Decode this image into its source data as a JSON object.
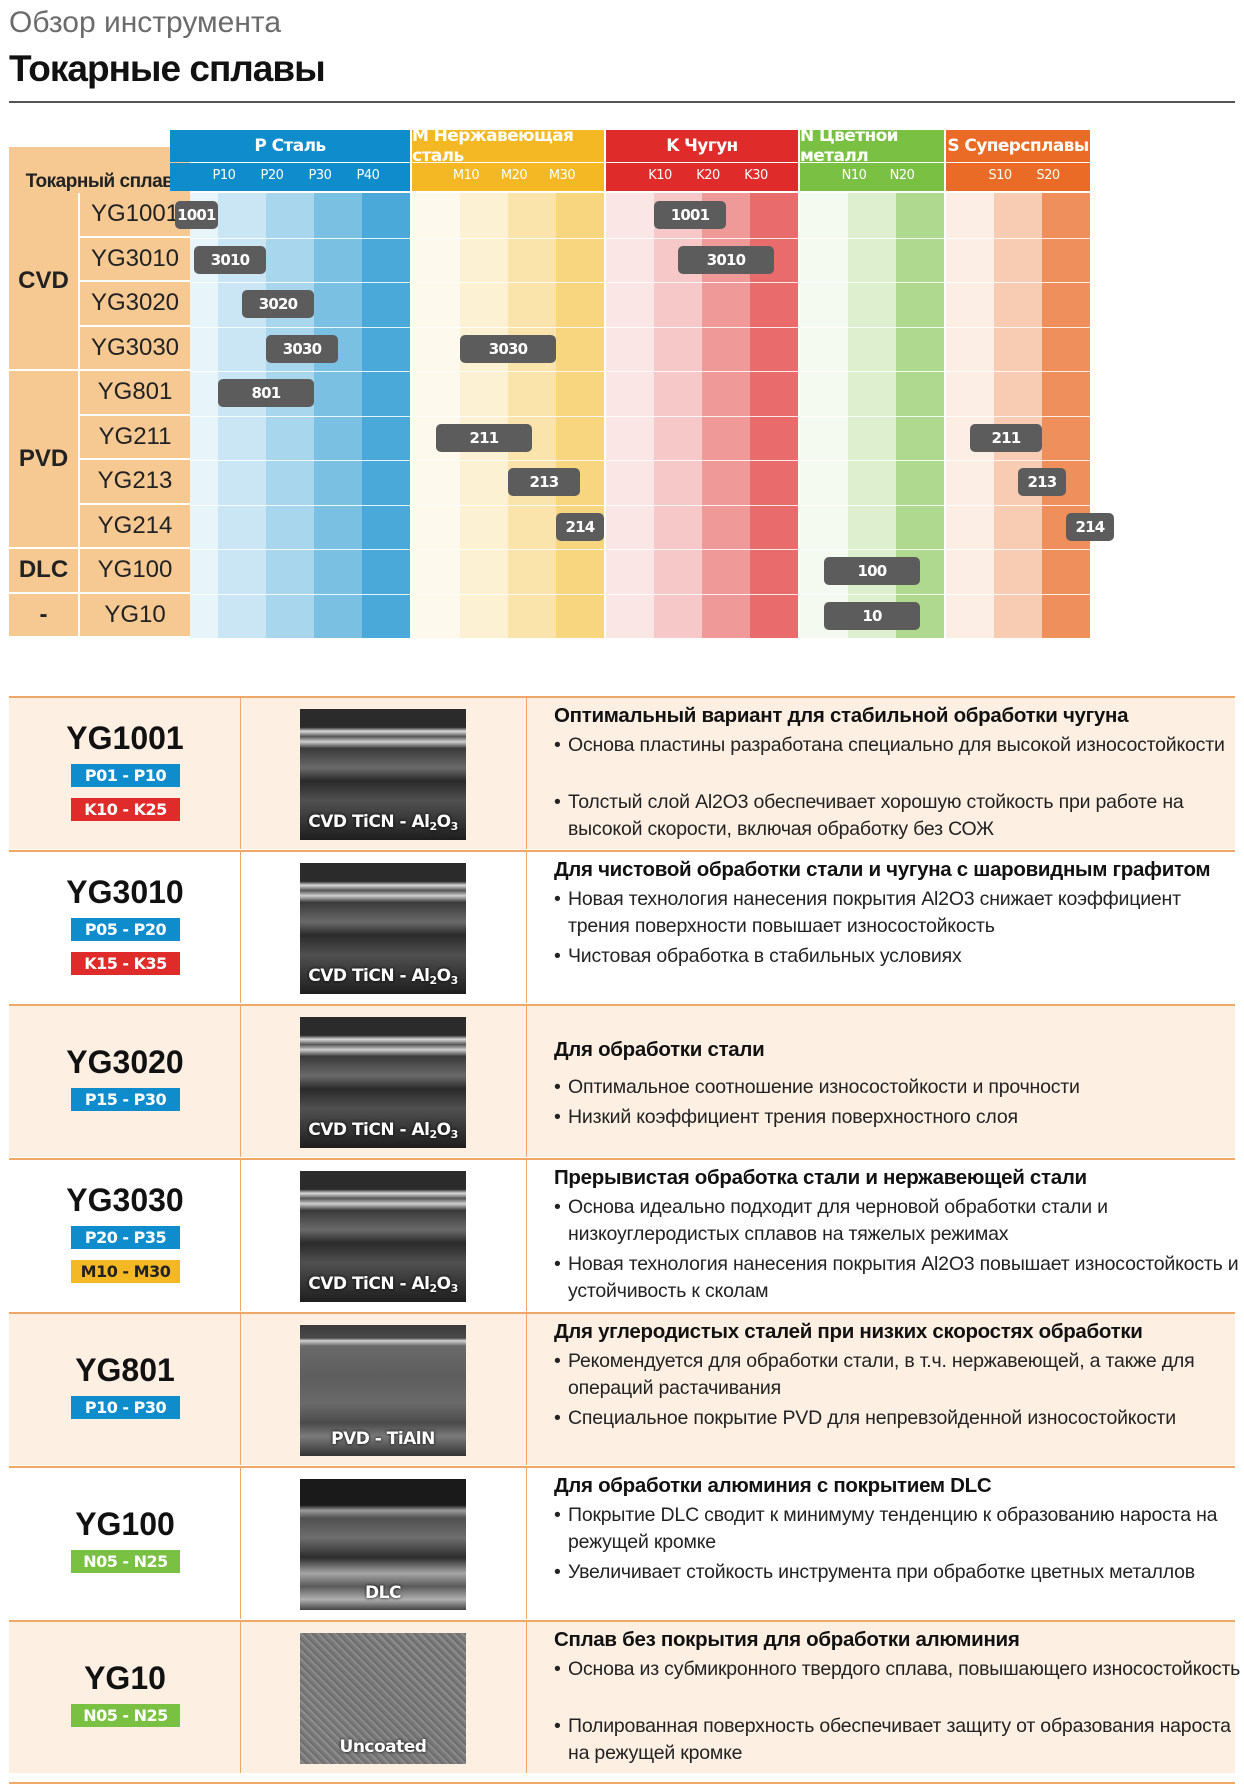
{
  "header": {
    "subtitle": "Обзор инструмента",
    "title": "Токарные сплавы"
  },
  "chart_data": {
    "type": "table",
    "corner_label": "Токарный сплав",
    "groups": [
      {
        "letter": "P",
        "name": "Сталь",
        "label": "P Сталь",
        "color": "#0e8ccb",
        "subcols": [
          "P10",
          "P20",
          "P30",
          "P40"
        ]
      },
      {
        "letter": "M",
        "name": "Нержавеющая сталь",
        "label": "M Нержавеющая сталь",
        "color": "#f3b824",
        "subcols": [
          "M10",
          "M20",
          "M30"
        ]
      },
      {
        "letter": "K",
        "name": "Чугун",
        "label": "K Чугун",
        "color": "#e02b2b",
        "subcols": [
          "K10",
          "K20",
          "K30"
        ]
      },
      {
        "letter": "N",
        "name": "Цветной металл",
        "label": "N Цветной металл",
        "color": "#79c043",
        "subcols": [
          "N10",
          "N20"
        ]
      },
      {
        "letter": "S",
        "name": "Суперсплавы",
        "label": "S Суперсплавы",
        "color": "#ea6b25",
        "subcols": [
          "S10",
          "S20"
        ]
      }
    ],
    "coating_types": [
      {
        "label": "CVD",
        "row_count": 4
      },
      {
        "label": "PVD",
        "row_count": 4
      },
      {
        "label": "DLC",
        "row_count": 1
      },
      {
        "label": "-",
        "row_count": 1
      }
    ],
    "grades": [
      {
        "grade": "YG1001",
        "ranges": [
          {
            "group": "P",
            "from": 1,
            "to": 10,
            "label": "1001"
          },
          {
            "group": "K",
            "from": 10,
            "to": 25,
            "label": "1001"
          }
        ]
      },
      {
        "grade": "YG3010",
        "ranges": [
          {
            "group": "P",
            "from": 5,
            "to": 20,
            "label": "3010"
          },
          {
            "group": "K",
            "from": 15,
            "to": 35,
            "label": "3010"
          }
        ]
      },
      {
        "grade": "YG3020",
        "ranges": [
          {
            "group": "P",
            "from": 15,
            "to": 30,
            "label": "3020"
          }
        ]
      },
      {
        "grade": "YG3030",
        "ranges": [
          {
            "group": "P",
            "from": 20,
            "to": 35,
            "label": "3030"
          },
          {
            "group": "M",
            "from": 10,
            "to": 30,
            "label": "3030"
          }
        ]
      },
      {
        "grade": "YG801",
        "ranges": [
          {
            "group": "P",
            "from": 10,
            "to": 30,
            "label": "801"
          }
        ]
      },
      {
        "grade": "YG211",
        "ranges": [
          {
            "group": "M",
            "from": 5,
            "to": 25,
            "label": "211"
          },
          {
            "group": "S",
            "from": 5,
            "to": 20,
            "label": "211"
          }
        ]
      },
      {
        "grade": "YG213",
        "ranges": [
          {
            "group": "M",
            "from": 20,
            "to": 35,
            "label": "213"
          },
          {
            "group": "S",
            "from": 15,
            "to": 25,
            "label": "213"
          }
        ]
      },
      {
        "grade": "YG214",
        "ranges": [
          {
            "group": "M",
            "from": 30,
            "to": 40,
            "label": "214"
          },
          {
            "group": "S",
            "from": 25,
            "to": 35,
            "label": "214"
          }
        ]
      },
      {
        "grade": "YG100",
        "ranges": [
          {
            "group": "N",
            "from": 5,
            "to": 25,
            "label": "100"
          }
        ]
      },
      {
        "grade": "YG10",
        "ranges": [
          {
            "group": "N",
            "from": 5,
            "to": 25,
            "label": "10"
          }
        ]
      }
    ]
  },
  "details": [
    {
      "grade": "YG1001",
      "badges": [
        {
          "text": "P01 - P10",
          "color": "#0e8ccb"
        },
        {
          "text": "K10 - K25",
          "color": "#e02b2b"
        }
      ],
      "coating": {
        "main": "CVD TiCN - Al",
        "sub1": "2",
        "mid": "O",
        "sub2": "3"
      },
      "title": "Оптимальный вариант для стабильной обработки чугуна",
      "bullets": [
        "Основа пластины разработана специально для высокой износостойкости",
        "Толстый слой Al2O3 обеспечивает хорошую стойкость при работе на высокой скорости, включая обработку без СОЖ"
      ]
    },
    {
      "grade": "YG3010",
      "badges": [
        {
          "text": "P05 - P20",
          "color": "#0e8ccb"
        },
        {
          "text": "K15 - K35",
          "color": "#e02b2b"
        }
      ],
      "coating": {
        "main": "CVD TiCN - Al",
        "sub1": "2",
        "mid": "O",
        "sub2": "3"
      },
      "title": "Для чистовой обработки стали и чугуна с шаровидным графитом",
      "bullets": [
        "Новая технология нанесения покрытия Al2O3 снижает коэффициент трения поверхности повышает износостойкость",
        "Чистовая обработка в стабильных условиях"
      ]
    },
    {
      "grade": "YG3020",
      "badges": [
        {
          "text": "P15 - P30",
          "color": "#0e8ccb"
        }
      ],
      "coating": {
        "main": "CVD TiCN - Al",
        "sub1": "2",
        "mid": "O",
        "sub2": "3"
      },
      "title": "Для обработки стали",
      "bullets": [
        "Оптимальное соотношение износостойкости и прочности",
        "Низкий коэффициент трения поверхностного слоя"
      ]
    },
    {
      "grade": "YG3030",
      "badges": [
        {
          "text": "P20 - P35",
          "color": "#0e8ccb"
        },
        {
          "text": "M10 - M30",
          "color": "#f3b824",
          "text_color": "#222222"
        }
      ],
      "coating": {
        "main": "CVD TiCN - Al",
        "sub1": "2",
        "mid": "O",
        "sub2": "3"
      },
      "title": "Прерывистая обработка стали и нержавеющей стали",
      "bullets": [
        "Основа идеально подходит для черновой обработки стали и низкоуглеродистых сплавов на тяжелых режимах",
        "Новая технология нанесения покрытия Al2O3 повышает износостойкость и устойчивость к сколам"
      ]
    },
    {
      "grade": "YG801",
      "badges": [
        {
          "text": "P10 - P30",
          "color": "#0e8ccb"
        }
      ],
      "coating": {
        "main": "PVD - TiAlN"
      },
      "title": "Для углеродистых сталей при низких скоростях обработки",
      "bullets": [
        "Рекомендуется для обработки стали, в т.ч. нержавеющей, а также для операций растачивания",
        "Специальное покрытие PVD для непревзойденной износостойкости"
      ]
    },
    {
      "grade": "YG100",
      "badges": [
        {
          "text": "N05 - N25",
          "color": "#79c043"
        }
      ],
      "coating": {
        "main": "DLC"
      },
      "title": "Для обработки алюминия с покрытием DLC",
      "bullets": [
        "Покрытие DLC сводит к минимуму тенденцию к образованию нароста на режущей кромке",
        "Увеличивает стойкость инструмента при обработке цветных металлов"
      ]
    },
    {
      "grade": "YG10",
      "badges": [
        {
          "text": "N05 - N25",
          "color": "#79c043"
        }
      ],
      "coating": {
        "main": "Uncoated"
      },
      "title": "Сплав без покрытия для обработки алюминия",
      "bullets": [
        "Основа из субмикронного твердого сплава, повышающего износостойкость",
        "Полированная поверхность обеспечивает защиту от образования нароста на режущей кромке"
      ]
    }
  ]
}
